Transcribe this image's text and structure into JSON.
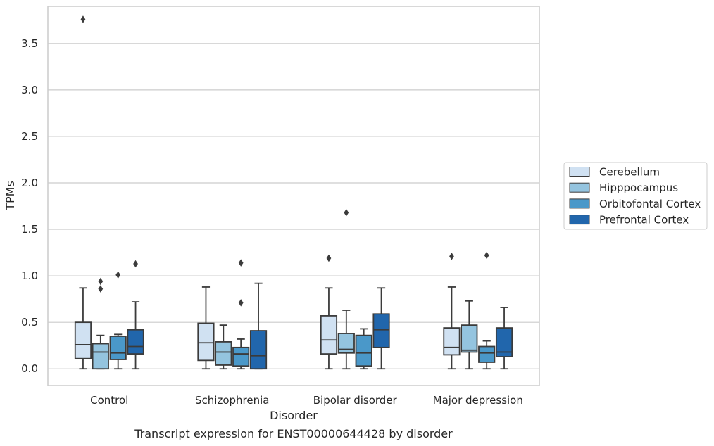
{
  "chart_data": {
    "type": "boxplot",
    "caption": "Transcript expression for ENST00000644428 by disorder",
    "xlabel": "Disorder",
    "ylabel": "TPMs",
    "ylim": [
      -0.18,
      3.9
    ],
    "yticks": [
      "0.0",
      "0.5",
      "1.0",
      "1.5",
      "2.0",
      "2.5",
      "3.0",
      "3.5"
    ],
    "grid": "horizontal",
    "legend_position": "right",
    "categories": [
      "Control",
      "Schizophrenia",
      "Bipolar disorder",
      "Major depression"
    ],
    "series": [
      {
        "name": "Cerebellum",
        "color": "#d0e1f2",
        "boxes": [
          {
            "whislo": 0.0,
            "q1": 0.11,
            "med": 0.26,
            "q3": 0.5,
            "whishi": 0.87,
            "fliers": [
              3.76
            ]
          },
          {
            "whislo": 0.0,
            "q1": 0.09,
            "med": 0.28,
            "q3": 0.49,
            "whishi": 0.88,
            "fliers": []
          },
          {
            "whislo": 0.0,
            "q1": 0.16,
            "med": 0.31,
            "q3": 0.57,
            "whishi": 0.87,
            "fliers": [
              1.19
            ]
          },
          {
            "whislo": 0.0,
            "q1": 0.15,
            "med": 0.23,
            "q3": 0.44,
            "whishi": 0.88,
            "fliers": [
              1.21
            ]
          }
        ]
      },
      {
        "name": "Hipppocampus",
        "color": "#94c4df",
        "boxes": [
          {
            "whislo": 0.0,
            "q1": 0.0,
            "med": 0.18,
            "q3": 0.27,
            "whishi": 0.36,
            "fliers": [
              0.86,
              0.94
            ]
          },
          {
            "whislo": 0.0,
            "q1": 0.04,
            "med": 0.18,
            "q3": 0.29,
            "whishi": 0.47,
            "fliers": []
          },
          {
            "whislo": 0.0,
            "q1": 0.17,
            "med": 0.21,
            "q3": 0.38,
            "whishi": 0.63,
            "fliers": [
              1.68
            ]
          },
          {
            "whislo": 0.0,
            "q1": 0.18,
            "med": 0.2,
            "q3": 0.47,
            "whishi": 0.73,
            "fliers": []
          }
        ]
      },
      {
        "name": "Orbitofontal Cortex",
        "color": "#4a98c9",
        "boxes": [
          {
            "whislo": 0.0,
            "q1": 0.1,
            "med": 0.17,
            "q3": 0.35,
            "whishi": 0.37,
            "fliers": [
              1.01
            ]
          },
          {
            "whislo": 0.0,
            "q1": 0.03,
            "med": 0.16,
            "q3": 0.23,
            "whishi": 0.32,
            "fliers": [
              0.71,
              1.14
            ]
          },
          {
            "whislo": 0.0,
            "q1": 0.03,
            "med": 0.17,
            "q3": 0.36,
            "whishi": 0.43,
            "fliers": []
          },
          {
            "whislo": 0.0,
            "q1": 0.07,
            "med": 0.17,
            "q3": 0.24,
            "whishi": 0.3,
            "fliers": [
              1.22
            ]
          }
        ]
      },
      {
        "name": "Prefrontal Cortex",
        "color": "#2166ac",
        "boxes": [
          {
            "whislo": 0.0,
            "q1": 0.16,
            "med": 0.24,
            "q3": 0.42,
            "whishi": 0.72,
            "fliers": [
              1.13
            ]
          },
          {
            "whislo": 0.0,
            "q1": 0.0,
            "med": 0.14,
            "q3": 0.41,
            "whishi": 0.92,
            "fliers": []
          },
          {
            "whislo": 0.0,
            "q1": 0.23,
            "med": 0.42,
            "q3": 0.59,
            "whishi": 0.87,
            "fliers": []
          },
          {
            "whislo": 0.0,
            "q1": 0.13,
            "med": 0.18,
            "q3": 0.44,
            "whishi": 0.66,
            "fliers": []
          }
        ]
      }
    ]
  }
}
